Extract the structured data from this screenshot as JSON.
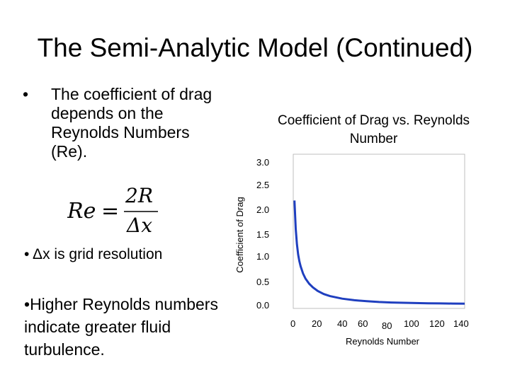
{
  "slide": {
    "title": "The Semi-Analytic Model (Continued)",
    "bullets": [
      "The coefficient of drag depends on the Reynolds Numbers (Re).",
      "Δx is grid resolution",
      "Higher Reynolds numbers indicate greater fluid turbulence."
    ],
    "bullet_symbol": "•",
    "formula": {
      "lhs": "Re",
      "equals": "=",
      "numerator": "2R",
      "denominator": "Δx"
    }
  },
  "chart_data": {
    "type": "line",
    "title": "Coefficient of Drag vs. Reynolds Number",
    "xlabel": "Reynolds Number",
    "ylabel": "Coefficient of Drag",
    "x_tick_labels": [
      "0",
      "20",
      "40",
      "60",
      "80",
      "100",
      "120",
      "140"
    ],
    "y_tick_labels": [
      "3.0",
      "2.5",
      "2.0",
      "1.5",
      "1.0",
      "0.5",
      "0.0"
    ],
    "xlim": [
      0,
      140
    ],
    "ylim": [
      0,
      3.0
    ],
    "grid": false,
    "legend": "none",
    "color": "#1f3fbf",
    "series": [
      {
        "x": [
          1,
          2,
          3,
          4,
          5,
          6,
          8,
          10,
          13,
          16,
          20,
          25,
          30,
          40,
          50,
          60,
          70,
          80,
          90,
          100,
          110,
          120,
          130,
          140
        ],
        "y": [
          2.1,
          1.55,
          1.25,
          1.05,
          0.92,
          0.82,
          0.68,
          0.58,
          0.48,
          0.41,
          0.34,
          0.28,
          0.24,
          0.19,
          0.16,
          0.14,
          0.125,
          0.115,
          0.11,
          0.105,
          0.1,
          0.098,
          0.095,
          0.093
        ]
      }
    ]
  }
}
